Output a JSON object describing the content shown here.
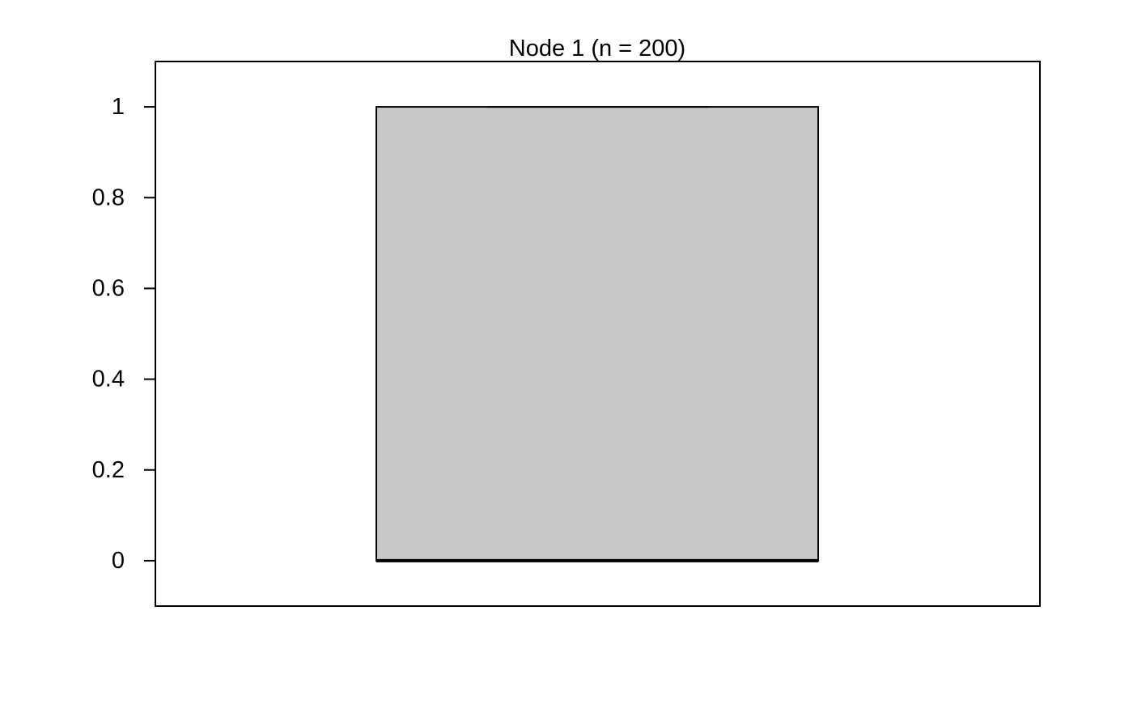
{
  "chart_data": {
    "type": "box",
    "title": "Node 1 (n = 200)",
    "xlabel": "",
    "ylabel": "",
    "ylim": [
      -0.1,
      1.1
    ],
    "yticks": [
      0,
      0.2,
      0.4,
      0.6,
      0.8,
      1
    ],
    "ytick_labels": [
      "0",
      "0.2",
      "0.4",
      "0.6",
      "0.8",
      "1"
    ],
    "n": 200,
    "box": {
      "min": 0,
      "q1": 0,
      "median": 0,
      "q3": 1,
      "max": 1
    },
    "colors": {
      "box_fill": "#c8c8c8",
      "stroke": "#000000",
      "background": "#ffffff"
    }
  }
}
